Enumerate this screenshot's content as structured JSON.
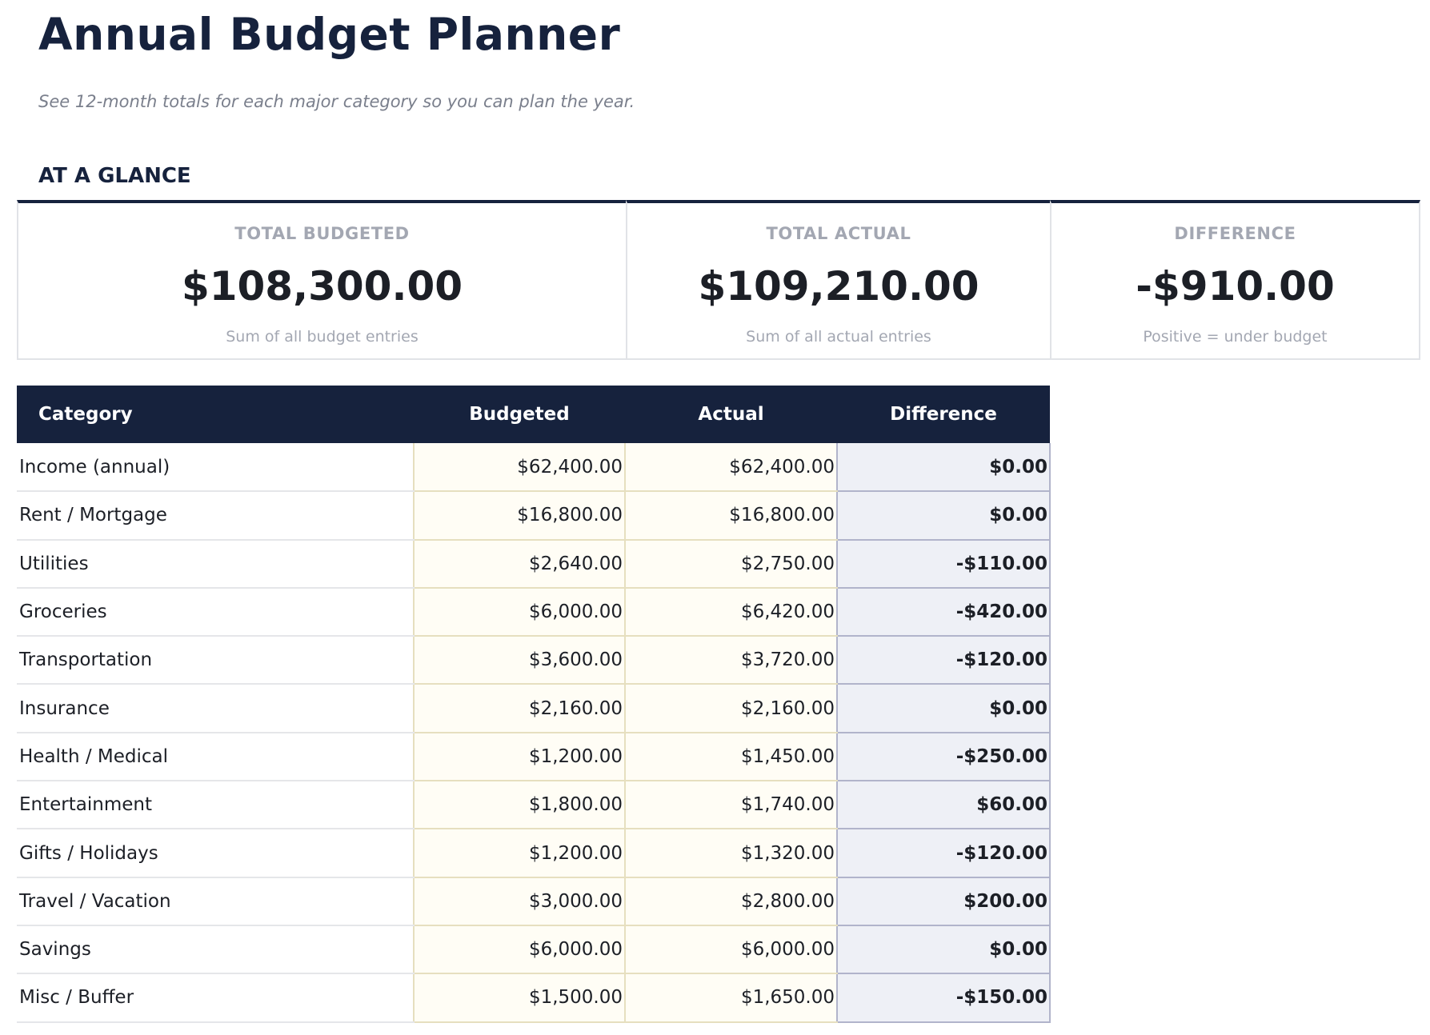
{
  "header": {
    "title": "Annual Budget Planner",
    "subtitle": "See 12-month totals for each major category so you can plan the year."
  },
  "glance": {
    "heading": "AT A GLANCE",
    "cards": [
      {
        "label": "TOTAL BUDGETED",
        "value": "$108,300.00",
        "note": "Sum of all budget entries"
      },
      {
        "label": "TOTAL ACTUAL",
        "value": "$109,210.00",
        "note": "Sum of all actual entries"
      },
      {
        "label": "DIFFERENCE",
        "value": "-$910.00",
        "note": "Positive = under budget"
      }
    ]
  },
  "table": {
    "columns": [
      "Category",
      "Budgeted",
      "Actual",
      "Difference"
    ],
    "rows": [
      {
        "category": "Income (annual)",
        "budgeted": "$62,400.00",
        "actual": "$62,400.00",
        "difference": "$0.00"
      },
      {
        "category": "Rent / Mortgage",
        "budgeted": "$16,800.00",
        "actual": "$16,800.00",
        "difference": "$0.00"
      },
      {
        "category": "Utilities",
        "budgeted": "$2,640.00",
        "actual": "$2,750.00",
        "difference": "-$110.00"
      },
      {
        "category": "Groceries",
        "budgeted": "$6,000.00",
        "actual": "$6,420.00",
        "difference": "-$420.00"
      },
      {
        "category": "Transportation",
        "budgeted": "$3,600.00",
        "actual": "$3,720.00",
        "difference": "-$120.00"
      },
      {
        "category": "Insurance",
        "budgeted": "$2,160.00",
        "actual": "$2,160.00",
        "difference": "$0.00"
      },
      {
        "category": "Health / Medical",
        "budgeted": "$1,200.00",
        "actual": "$1,450.00",
        "difference": "-$250.00"
      },
      {
        "category": "Entertainment",
        "budgeted": "$1,800.00",
        "actual": "$1,740.00",
        "difference": "$60.00"
      },
      {
        "category": "Gifts / Holidays",
        "budgeted": "$1,200.00",
        "actual": "$1,320.00",
        "difference": "-$120.00"
      },
      {
        "category": "Travel / Vacation",
        "budgeted": "$3,000.00",
        "actual": "$2,800.00",
        "difference": "$200.00"
      },
      {
        "category": "Savings",
        "budgeted": "$6,000.00",
        "actual": "$6,000.00",
        "difference": "$0.00"
      },
      {
        "category": "Misc / Buffer",
        "budgeted": "$1,500.00",
        "actual": "$1,650.00",
        "difference": "-$150.00"
      }
    ]
  },
  "colors": {
    "navy": "#16223d",
    "budget_cell_bg": "#fffdf5",
    "difference_cell_bg": "#eef0f6",
    "muted_text": "#a3a7b2"
  }
}
